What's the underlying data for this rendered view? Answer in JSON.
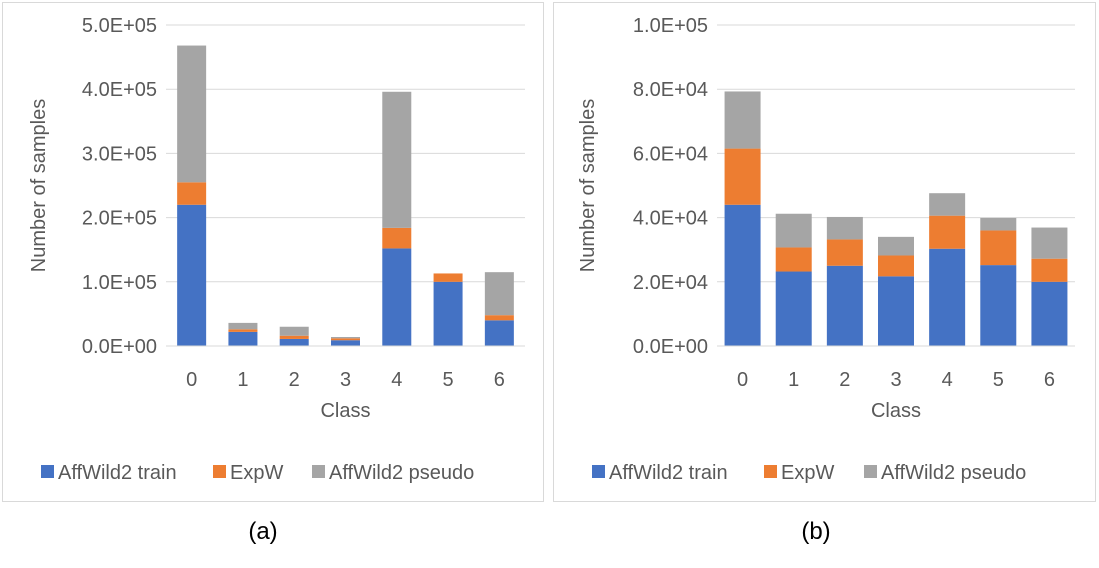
{
  "chart_data": [
    {
      "type": "bar",
      "stacked": true,
      "title": "",
      "xlabel": "Class",
      "ylabel": "Number of samples",
      "categories": [
        "0",
        "1",
        "2",
        "3",
        "4",
        "5",
        "6"
      ],
      "ylim": [
        0,
        500000
      ],
      "yticks": [
        "0.0E+00",
        "1.0E+05",
        "2.0E+05",
        "3.0E+05",
        "4.0E+05",
        "5.0E+05"
      ],
      "ytick_values": [
        0,
        100000,
        200000,
        300000,
        400000,
        500000
      ],
      "legend_position": "bottom",
      "grid": true,
      "series": [
        {
          "name": "AffWild2 train",
          "color": "#4472c4",
          "values": [
            220000,
            22000,
            11000,
            9000,
            152000,
            100000,
            40000
          ]
        },
        {
          "name": "ExpW",
          "color": "#ed7d31",
          "values": [
            35000,
            4000,
            5000,
            3000,
            32000,
            13000,
            8000
          ]
        },
        {
          "name": "AffWild2 pseudo",
          "color": "#a5a5a5",
          "values": [
            213000,
            10000,
            14000,
            2000,
            212000,
            0,
            67000
          ]
        }
      ]
    },
    {
      "type": "bar",
      "stacked": true,
      "title": "",
      "xlabel": "Class",
      "ylabel": "Number of samples",
      "categories": [
        "0",
        "1",
        "2",
        "3",
        "4",
        "5",
        "6"
      ],
      "ylim": [
        0,
        100000
      ],
      "yticks": [
        "0.0E+00",
        "2.0E+04",
        "4.0E+04",
        "6.0E+04",
        "8.0E+04",
        "1.0E+05"
      ],
      "ytick_values": [
        0,
        20000,
        40000,
        60000,
        80000,
        100000
      ],
      "legend_position": "bottom",
      "grid": true,
      "series": [
        {
          "name": "AffWild2 train",
          "color": "#4472c4",
          "values": [
            44000,
            23200,
            25000,
            21700,
            30300,
            25200,
            20000
          ]
        },
        {
          "name": "ExpW",
          "color": "#ed7d31",
          "values": [
            17500,
            7500,
            8200,
            6500,
            10300,
            10800,
            7200
          ]
        },
        {
          "name": "AffWild2 pseudo",
          "color": "#a5a5a5",
          "values": [
            17800,
            10500,
            7000,
            5800,
            7000,
            3900,
            9700
          ]
        }
      ]
    }
  ],
  "captions": [
    "(a)",
    "(b)"
  ]
}
